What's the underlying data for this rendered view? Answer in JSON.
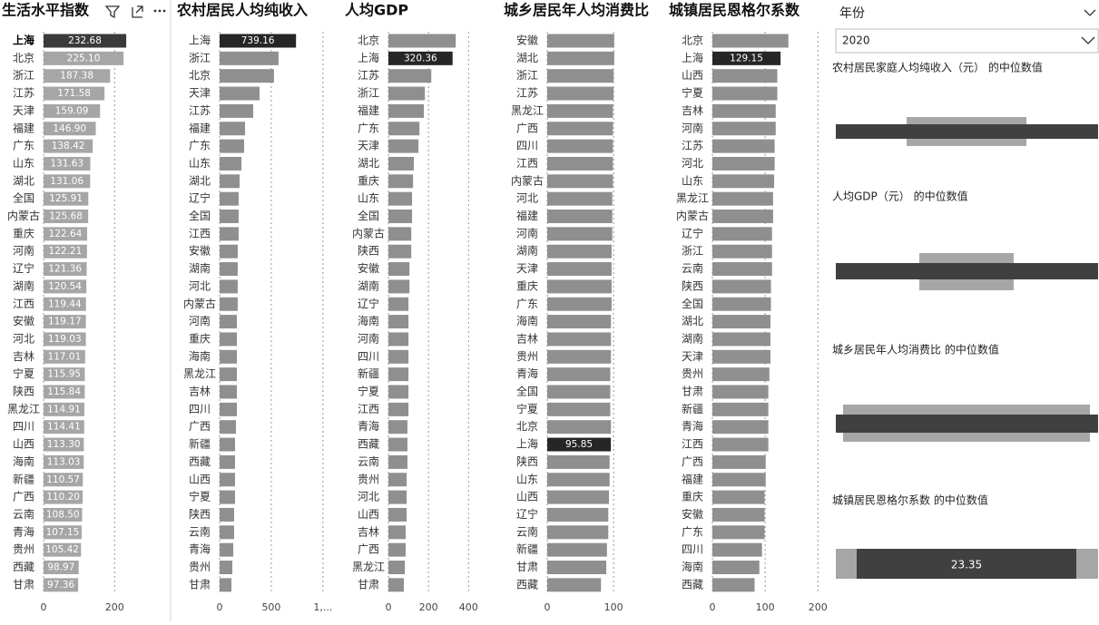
{
  "chart_data": [
    {
      "type": "bar",
      "orientation": "horizontal",
      "title": "生活水平指数",
      "color": "#a6a6a6",
      "highlight": "上海",
      "highlight_color": "#3a3a3a",
      "grid": true,
      "categories": [
        "上海",
        "北京",
        "浙江",
        "江苏",
        "天津",
        "福建",
        "广东",
        "山东",
        "湖北",
        "全国",
        "内蒙古",
        "重庆",
        "河南",
        "辽宁",
        "湖南",
        "江西",
        "安徽",
        "河北",
        "吉林",
        "宁夏",
        "陕西",
        "黑龙江",
        "四川",
        "山西",
        "海南",
        "新疆",
        "广西",
        "云南",
        "青海",
        "贵州",
        "西藏",
        "甘肃"
      ],
      "values": [
        232.68,
        225.1,
        187.38,
        171.58,
        159.09,
        146.9,
        138.42,
        131.63,
        131.06,
        125.91,
        125.68,
        122.64,
        122.21,
        121.36,
        120.54,
        119.44,
        119.17,
        119.03,
        117.01,
        115.95,
        115.84,
        114.91,
        114.41,
        113.3,
        113.03,
        110.57,
        110.2,
        108.5,
        107.15,
        105.42,
        98.97,
        97.36
      ],
      "value_labels": [
        "232.68",
        "225.10",
        "187.38",
        "171.58",
        "159.09",
        "146.90",
        "138.42",
        "131.63",
        "131.06",
        "125.91",
        "125.68",
        "122.64",
        "122.21",
        "121.36",
        "120.54",
        "119.44",
        "119.17",
        "119.03",
        "117.01",
        "115.95",
        "115.84",
        "114.91",
        "114.41",
        "113.30",
        "113.03",
        "110.57",
        "110.20",
        "108.50",
        "107.15",
        "105.42",
        "98.97",
        "97.36"
      ],
      "xlim": [
        0,
        350
      ],
      "xticks": [
        0,
        200
      ]
    },
    {
      "type": "bar",
      "orientation": "horizontal",
      "title": "农村居民人均纯收入",
      "color": "#8f8f8f",
      "highlight": "上海",
      "highlight_color": "#262626",
      "grid": true,
      "categories": [
        "上海",
        "浙江",
        "北京",
        "天津",
        "江苏",
        "福建",
        "广东",
        "山东",
        "湖北",
        "辽宁",
        "全国",
        "江西",
        "安徽",
        "湖南",
        "河北",
        "内蒙古",
        "河南",
        "重庆",
        "海南",
        "黑龙江",
        "吉林",
        "四川",
        "广西",
        "新疆",
        "西藏",
        "山西",
        "宁夏",
        "陕西",
        "云南",
        "青海",
        "贵州",
        "甘肃"
      ],
      "values": [
        739.16,
        570,
        526,
        386,
        325,
        246,
        237,
        211,
        193,
        184,
        184,
        184,
        175,
        175,
        175,
        175,
        167,
        167,
        167,
        167,
        167,
        167,
        158,
        149,
        149,
        149,
        149,
        140,
        140,
        132,
        123,
        114
      ],
      "xlim": [
        0,
        1080
      ],
      "xticks": [
        0,
        500,
        {
          "value": 1000,
          "label": "1,..."
        }
      ]
    },
    {
      "type": "bar",
      "orientation": "horizontal",
      "title": "人均GDP",
      "color": "#8f8f8f",
      "highlight": "上海",
      "highlight_color": "#262626",
      "grid": true,
      "categories": [
        "北京",
        "上海",
        "江苏",
        "浙江",
        "福建",
        "广东",
        "天津",
        "湖北",
        "重庆",
        "山东",
        "全国",
        "内蒙古",
        "陕西",
        "安徽",
        "湖南",
        "辽宁",
        "海南",
        "河南",
        "四川",
        "新疆",
        "宁夏",
        "江西",
        "青海",
        "西藏",
        "云南",
        "贵州",
        "河北",
        "山西",
        "吉林",
        "广西",
        "黑龙江",
        "甘肃"
      ],
      "values": [
        336,
        320.36,
        214,
        182,
        177,
        155,
        150,
        127,
        123,
        118,
        118,
        114,
        114,
        105,
        105,
        100,
        100,
        100,
        100,
        100,
        100,
        100,
        95,
        95,
        95,
        91,
        91,
        91,
        86,
        86,
        82,
        77
      ],
      "xlim": [
        0,
        530
      ],
      "xticks": [
        0,
        200,
        400
      ]
    },
    {
      "type": "bar",
      "orientation": "horizontal",
      "title": "城乡居民年人均消费比",
      "color": "#8f8f8f",
      "highlight": "上海",
      "highlight_color": "#262626",
      "grid": true,
      "categories": [
        "安徽",
        "湖北",
        "浙江",
        "江苏",
        "黑龙江",
        "广西",
        "四川",
        "江西",
        "内蒙古",
        "河北",
        "福建",
        "河南",
        "湖南",
        "天津",
        "重庆",
        "广东",
        "海南",
        "吉林",
        "贵州",
        "青海",
        "全国",
        "宁夏",
        "北京",
        "上海",
        "陕西",
        "山东",
        "山西",
        "辽宁",
        "云南",
        "新疆",
        "甘肃",
        "西藏"
      ],
      "values": [
        101,
        101,
        100,
        100,
        99,
        99,
        99,
        99,
        99,
        98,
        98,
        98,
        97,
        97,
        97,
        97,
        96,
        96,
        96,
        95,
        95,
        95,
        96,
        95.85,
        94,
        94,
        93,
        92,
        92,
        90,
        89,
        81
      ],
      "xlim": [
        0,
        160
      ],
      "xticks": [
        0,
        100
      ]
    },
    {
      "type": "bar",
      "orientation": "horizontal",
      "title": "城镇居民恩格尔系数",
      "color": "#8f8f8f",
      "highlight": "上海",
      "highlight_color": "#262626",
      "grid": true,
      "categories": [
        "北京",
        "上海",
        "山西",
        "宁夏",
        "吉林",
        "河南",
        "江苏",
        "河北",
        "山东",
        "黑龙江",
        "内蒙古",
        "辽宁",
        "浙江",
        "云南",
        "陕西",
        "全国",
        "湖北",
        "湖南",
        "天津",
        "贵州",
        "甘肃",
        "新疆",
        "青海",
        "江西",
        "广西",
        "福建",
        "重庆",
        "安徽",
        "广东",
        "四川",
        "海南",
        "西藏"
      ],
      "values": [
        144,
        129.15,
        123,
        123,
        120,
        120,
        118,
        118,
        117,
        115,
        115,
        113,
        113,
        113,
        111,
        111,
        110,
        110,
        110,
        108,
        106,
        106,
        106,
        106,
        101,
        101,
        99,
        99,
        99,
        94,
        89,
        80
      ],
      "xlim": [
        0,
        215
      ],
      "xticks": [
        0,
        100,
        200
      ]
    }
  ],
  "slicer": {
    "title": "年份",
    "value": "2020"
  },
  "cards": [
    {
      "title": "农村居民家庭人均纯收入（元） 的中位数值"
    },
    {
      "title": "人均GDP（元） 的中位数值"
    },
    {
      "title": "城乡居民年人均消费比 的中位数值"
    },
    {
      "title": "城镇居民恩格尔系数 的中位数值",
      "value": 23.35
    }
  ]
}
